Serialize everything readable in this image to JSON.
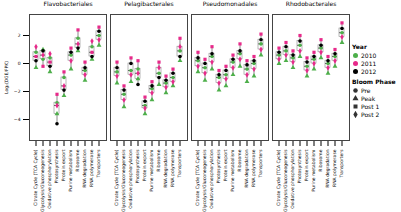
{
  "chart_data": {
    "type": "box",
    "y_label": "Log₂(DGE/FPK)",
    "ylim": [
      -5.5,
      3.5
    ],
    "yticks": [
      -4,
      -2,
      0,
      2
    ],
    "categories": [
      "Citrate Cycle (TCA Cycle)",
      "Glycolysis/Gluconeogenesis",
      "Oxidative phosphorylation",
      "Photosynthesis",
      "Protein export",
      "Purine metabolism",
      "Ribosome",
      "RNA degradation",
      "RNA polymerase",
      "Transporters"
    ],
    "color_title": "Year",
    "series": [
      {
        "name": "2010",
        "color": "#4daf4a"
      },
      {
        "name": "2011",
        "color": "#e7298a"
      },
      {
        "name": "2012",
        "color": "#000000"
      }
    ],
    "marker_title": "Bloom Phase",
    "markers": [
      {
        "name": "Pre",
        "marker": "circle"
      },
      {
        "name": "Peak",
        "marker": "triangle"
      },
      {
        "name": "Post 1",
        "marker": "square"
      },
      {
        "name": "Post 2",
        "marker": "diamond"
      }
    ],
    "point_years": [
      "2010",
      "2010",
      "2011",
      "2011",
      "2012"
    ],
    "point_phases": [
      "Pre",
      "Peak",
      "Post 1",
      "Post 2",
      "Pre"
    ],
    "facets": [
      {
        "name": "Flavobacteriales",
        "values": [
          [
            0.8,
            -0.3,
            0.5,
            1.2,
            0.2
          ],
          [
            0.3,
            1.0,
            -0.2,
            0.6,
            0.9
          ],
          [
            0.4,
            -0.6,
            0.1,
            0.7,
            -0.2
          ],
          [
            -2.8,
            -3.6,
            -2.2,
            -3.0,
            -4.3
          ],
          [
            -1.0,
            -2.3,
            -0.6,
            -1.6,
            -1.9
          ],
          [
            0.6,
            -0.4,
            1.1,
            0.2,
            0.8
          ],
          [
            1.8,
            0.9,
            2.4,
            1.4,
            1.1
          ],
          [
            -0.5,
            -1.2,
            0.1,
            -0.8,
            -0.3
          ],
          [
            1.2,
            0.3,
            0.8,
            1.6,
            0.5
          ],
          [
            2.0,
            1.3,
            2.6,
            1.7,
            2.3
          ]
        ]
      },
      {
        "name": "Pelagibacterales",
        "values": [
          [
            -0.6,
            -1.4,
            0.1,
            -0.9,
            -0.3
          ],
          [
            -2.2,
            -3.1,
            -1.6,
            -2.6,
            -1.9
          ],
          [
            -0.5,
            -1.3,
            0.4,
            -0.8,
            0.0
          ],
          [
            -0.4,
            -1.1,
            0.2,
            -0.7,
            -1.5
          ],
          [
            -3.0,
            -3.6,
            -2.4,
            -3.2,
            -2.7
          ],
          [
            -1.8,
            -2.6,
            -1.3,
            -2.1,
            -1.6
          ],
          [
            -0.7,
            -1.5,
            0.1,
            -0.3,
            -1.0
          ],
          [
            -1.4,
            -2.1,
            -0.9,
            -1.7,
            -1.2
          ],
          [
            -1.0,
            -1.6,
            -0.4,
            -1.3,
            -0.7
          ],
          [
            0.9,
            0.2,
            1.8,
            1.2,
            0.5
          ]
        ]
      },
      {
        "name": "Pseudomonadales",
        "values": [
          [
            0.2,
            -0.6,
            0.8,
            -0.2,
            0.4
          ],
          [
            -0.3,
            -1.2,
            0.3,
            -0.7,
            0.0
          ],
          [
            0.5,
            -0.4,
            1.2,
            0.1,
            0.7
          ],
          [
            -1.0,
            -1.9,
            -0.5,
            -1.4,
            -0.8
          ],
          [
            -0.8,
            -1.6,
            -0.2,
            -1.1,
            -0.5
          ],
          [
            0.1,
            -0.8,
            0.6,
            -0.3,
            0.3
          ],
          [
            0.7,
            -0.2,
            1.4,
            0.3,
            0.9
          ],
          [
            -0.4,
            -1.3,
            0.2,
            -0.8,
            -0.1
          ],
          [
            0.0,
            -0.9,
            0.5,
            -0.4,
            0.2
          ],
          [
            1.4,
            0.6,
            2.1,
            1.0,
            1.7
          ]
        ]
      },
      {
        "name": "Rhodobacterales",
        "values": [
          [
            0.6,
            0.0,
            1.1,
            0.3,
            0.8
          ],
          [
            0.9,
            0.2,
            1.5,
            0.6,
            1.2
          ],
          [
            0.4,
            -0.3,
            0.9,
            0.1,
            0.6
          ],
          [
            1.3,
            0.5,
            2.0,
            0.9,
            1.6
          ],
          [
            -0.2,
            -0.9,
            0.4,
            -0.5,
            0.1
          ],
          [
            0.3,
            -0.4,
            0.8,
            0.0,
            0.5
          ],
          [
            1.1,
            0.4,
            1.7,
            0.8,
            1.3
          ],
          [
            0.0,
            -0.7,
            0.5,
            -0.3,
            0.2
          ],
          [
            0.5,
            -0.2,
            1.0,
            0.2,
            0.7
          ],
          [
            2.2,
            1.5,
            2.9,
            1.9,
            2.5
          ]
        ]
      }
    ]
  }
}
